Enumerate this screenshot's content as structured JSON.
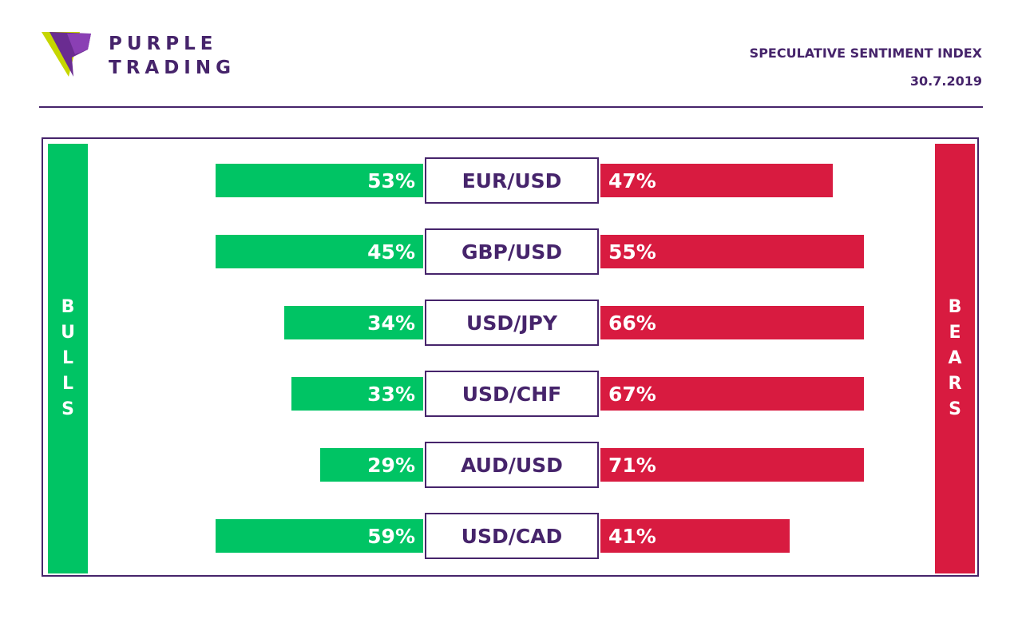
{
  "brand": {
    "line1": "PURPLE",
    "line2": "TRADING",
    "logo_icon": "purple-trading-logo-icon"
  },
  "header": {
    "title": "SPECULATIVE SENTIMENT INDEX",
    "date": "30.7.2019"
  },
  "side_labels": {
    "bulls": "BULLS",
    "bears": "BEARS"
  },
  "colors": {
    "bulls": "#00c464",
    "bears": "#d81b40",
    "accent": "#46246b"
  },
  "chart_data": {
    "type": "bar",
    "categories": [
      "EUR/USD",
      "GBP/USD",
      "USD/JPY",
      "USD/CHF",
      "AUD/USD",
      "USD/CAD"
    ],
    "series": [
      {
        "name": "BULLS",
        "values": [
          53,
          45,
          34,
          33,
          29,
          59
        ],
        "labels": [
          "53%",
          "45%",
          "34%",
          "33%",
          "29%",
          "59%"
        ]
      },
      {
        "name": "BEARS",
        "values": [
          47,
          55,
          66,
          67,
          71,
          41
        ],
        "labels": [
          "47%",
          "55%",
          "66%",
          "67%",
          "71%",
          "41%"
        ]
      }
    ],
    "ylim": [
      0,
      100
    ]
  }
}
